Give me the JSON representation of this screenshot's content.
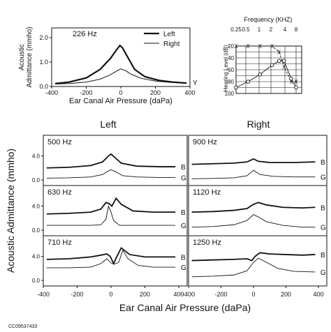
{
  "figure_id": "CC09537433",
  "chart_data": [
    {
      "id": "tymp226",
      "type": "line",
      "freq_label": "226 Hz",
      "ylabel": "Acoustic Admittance (mmho)",
      "xlabel": "Ear Canal Air Pressure (daPa)",
      "xlim": [
        -400,
        400
      ],
      "ylim": [
        0,
        2.4
      ],
      "xticks": [
        "-400",
        "-200",
        "0",
        "200",
        "400"
      ],
      "yticks": [
        "0.0",
        "1.0",
        "2.0"
      ],
      "legend_position": "top-right",
      "legend": [
        "Left",
        "Right"
      ],
      "end_label": "Y",
      "series": [
        {
          "name": "Left",
          "points": [
            [
              -380,
              0.12
            ],
            [
              -300,
              0.18
            ],
            [
              -200,
              0.35
            ],
            [
              -120,
              0.7
            ],
            [
              -60,
              1.15
            ],
            [
              -25,
              1.5
            ],
            [
              -5,
              1.68
            ],
            [
              10,
              1.58
            ],
            [
              40,
              1.2
            ],
            [
              80,
              0.7
            ],
            [
              140,
              0.4
            ],
            [
              220,
              0.25
            ],
            [
              300,
              0.18
            ],
            [
              380,
              0.14
            ]
          ]
        },
        {
          "name": "Right",
          "points": [
            [
              -380,
              0.1
            ],
            [
              -300,
              0.12
            ],
            [
              -200,
              0.18
            ],
            [
              -120,
              0.3
            ],
            [
              -60,
              0.48
            ],
            [
              -20,
              0.65
            ],
            [
              0,
              0.72
            ],
            [
              25,
              0.66
            ],
            [
              60,
              0.5
            ],
            [
              120,
              0.33
            ],
            [
              200,
              0.22
            ],
            [
              300,
              0.16
            ],
            [
              380,
              0.13
            ]
          ]
        }
      ]
    },
    {
      "id": "audiogram",
      "type": "line",
      "xlabel": "Frequency (KHZ)",
      "ylabel": "Hearing Level (dB)",
      "xticks": [
        "0.25",
        "0.5",
        "1",
        "2",
        "4",
        "8"
      ],
      "yticks": [
        "20",
        "40",
        "60",
        "80",
        "100"
      ],
      "ylim": [
        0,
        100
      ],
      "series": [
        {
          "name": "Left",
          "marker": "X",
          "points": [
            [
              0.25,
              20
            ],
            [
              0.5,
              20
            ],
            [
              1,
              20
            ],
            [
              2,
              20
            ],
            [
              3,
              30
            ],
            [
              4,
              55
            ],
            [
              6,
              80
            ],
            [
              8,
              80
            ]
          ]
        },
        {
          "name": "Right",
          "marker": "O",
          "points": [
            [
              0.25,
              90
            ],
            [
              0.5,
              80
            ],
            [
              1,
              68
            ],
            [
              2,
              52
            ],
            [
              3,
              45
            ],
            [
              4,
              45
            ],
            [
              6,
              75
            ],
            [
              8,
              90
            ]
          ]
        }
      ]
    },
    {
      "id": "mft",
      "type": "line",
      "column_titles": [
        "Left",
        "Right"
      ],
      "ylabel": "Acoustic Admittance (mmho)",
      "xlabel": "Ear Canal Air Pressure (daPa)",
      "xlim": [
        -400,
        400
      ],
      "ylim": [
        0,
        6.5
      ],
      "xticks": [
        "-400",
        "-200",
        "0",
        "200",
        "400"
      ],
      "yticks": [
        "0.0",
        "4.0"
      ],
      "curve_labels": [
        "B",
        "G"
      ],
      "panels": [
        {
          "freq": "500 Hz",
          "ear": "Left",
          "B": [
            [
              -380,
              2.0
            ],
            [
              -250,
              2.1
            ],
            [
              -120,
              2.4
            ],
            [
              -50,
              3.0
            ],
            [
              -15,
              4.0
            ],
            [
              0,
              4.3
            ],
            [
              20,
              3.8
            ],
            [
              60,
              2.8
            ],
            [
              150,
              2.3
            ],
            [
              300,
              2.2
            ],
            [
              380,
              2.2
            ]
          ],
          "G": [
            [
              -380,
              0.3
            ],
            [
              -250,
              0.35
            ],
            [
              -120,
              0.5
            ],
            [
              -50,
              0.9
            ],
            [
              -15,
              1.5
            ],
            [
              0,
              1.7
            ],
            [
              25,
              1.4
            ],
            [
              70,
              0.7
            ],
            [
              150,
              0.5
            ],
            [
              300,
              0.4
            ],
            [
              380,
              0.4
            ]
          ]
        },
        {
          "freq": "900 Hz",
          "ear": "Right",
          "B": [
            [
              -380,
              2.6
            ],
            [
              -250,
              2.7
            ],
            [
              -120,
              2.8
            ],
            [
              -40,
              3.0
            ],
            [
              0,
              3.5
            ],
            [
              30,
              3.1
            ],
            [
              100,
              2.9
            ],
            [
              250,
              2.9
            ],
            [
              380,
              3.0
            ]
          ],
          "G": [
            [
              -380,
              0.2
            ],
            [
              -250,
              0.25
            ],
            [
              -120,
              0.35
            ],
            [
              -40,
              0.7
            ],
            [
              0,
              1.6
            ],
            [
              40,
              0.9
            ],
            [
              120,
              0.6
            ],
            [
              250,
              0.5
            ],
            [
              380,
              0.5
            ]
          ]
        },
        {
          "freq": "630 Hz",
          "ear": "Left",
          "B": [
            [
              -380,
              2.7
            ],
            [
              -250,
              2.8
            ],
            [
              -120,
              3.0
            ],
            [
              -60,
              3.5
            ],
            [
              -30,
              4.6
            ],
            [
              -10,
              4.4
            ],
            [
              5,
              4.0
            ],
            [
              30,
              5.3
            ],
            [
              60,
              4.3
            ],
            [
              130,
              3.2
            ],
            [
              250,
              3.0
            ],
            [
              380,
              3.0
            ]
          ],
          "G": [
            [
              -380,
              0.8
            ],
            [
              -250,
              0.8
            ],
            [
              -120,
              0.8
            ],
            [
              -60,
              0.9
            ],
            [
              -30,
              1.8
            ],
            [
              -15,
              4.0
            ],
            [
              0,
              3.0
            ],
            [
              15,
              1.6
            ],
            [
              50,
              0.8
            ],
            [
              150,
              0.8
            ],
            [
              380,
              0.8
            ]
          ]
        },
        {
          "freq": "1120 Hz",
          "ear": "Right",
          "B": [
            [
              -380,
              3.0
            ],
            [
              -250,
              3.1
            ],
            [
              -120,
              3.3
            ],
            [
              -40,
              3.6
            ],
            [
              0,
              4.3
            ],
            [
              30,
              4.6
            ],
            [
              80,
              4.2
            ],
            [
              180,
              3.8
            ],
            [
              300,
              3.7
            ],
            [
              380,
              3.8
            ]
          ],
          "G": [
            [
              -380,
              0.5
            ],
            [
              -250,
              0.6
            ],
            [
              -120,
              0.9
            ],
            [
              -40,
              1.6
            ],
            [
              0,
              2.6
            ],
            [
              30,
              2.2
            ],
            [
              80,
              1.4
            ],
            [
              180,
              0.8
            ],
            [
              300,
              0.5
            ],
            [
              380,
              0.5
            ]
          ]
        },
        {
          "freq": "710 Hz",
          "ear": "Left",
          "B": [
            [
              -380,
              3.5
            ],
            [
              -250,
              3.6
            ],
            [
              -120,
              3.9
            ],
            [
              -60,
              4.2
            ],
            [
              -25,
              4.4
            ],
            [
              -5,
              4.0
            ],
            [
              15,
              2.8
            ],
            [
              35,
              4.0
            ],
            [
              60,
              5.4
            ],
            [
              110,
              4.3
            ],
            [
              200,
              3.9
            ],
            [
              380,
              3.9
            ]
          ],
          "G": [
            [
              -380,
              2.1
            ],
            [
              -250,
              2.1
            ],
            [
              -120,
              2.2
            ],
            [
              -60,
              2.8
            ],
            [
              -25,
              3.6
            ],
            [
              0,
              2.9
            ],
            [
              20,
              2.7
            ],
            [
              45,
              3.0
            ],
            [
              70,
              5.0
            ],
            [
              100,
              3.6
            ],
            [
              160,
              2.5
            ],
            [
              250,
              2.2
            ],
            [
              380,
              2.2
            ]
          ]
        },
        {
          "freq": "1250 Hz",
          "ear": "Right",
          "B": [
            [
              -380,
              3.3
            ],
            [
              -250,
              3.4
            ],
            [
              -120,
              3.5
            ],
            [
              -40,
              3.6
            ],
            [
              -10,
              3.3
            ],
            [
              10,
              4.0
            ],
            [
              40,
              4.6
            ],
            [
              100,
              4.4
            ],
            [
              200,
              4.3
            ],
            [
              300,
              4.2
            ],
            [
              380,
              4.3
            ]
          ],
          "G": [
            [
              -380,
              0.6
            ],
            [
              -250,
              0.7
            ],
            [
              -120,
              0.9
            ],
            [
              -40,
              1.6
            ],
            [
              0,
              3.0
            ],
            [
              30,
              3.7
            ],
            [
              80,
              3.0
            ],
            [
              150,
              2.0
            ],
            [
              250,
              1.5
            ],
            [
              380,
              1.4
            ]
          ]
        }
      ]
    }
  ]
}
